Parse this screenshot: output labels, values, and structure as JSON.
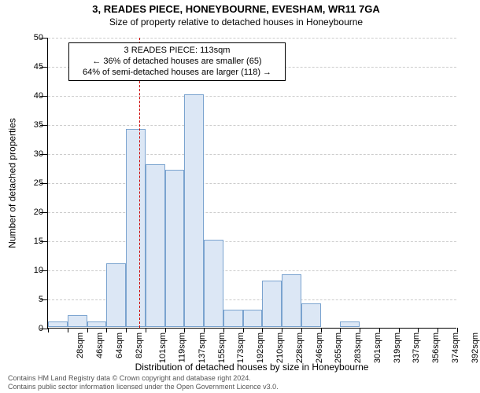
{
  "title": "3, READES PIECE, HONEYBOURNE, EVESHAM, WR11 7GA",
  "subtitle": "Size of property relative to detached houses in Honeybourne",
  "ylabel": "Number of detached properties",
  "xlabel": "Distribution of detached houses by size in Honeybourne",
  "chart": {
    "type": "histogram",
    "ylim": [
      0,
      50
    ],
    "ytick_step": 5,
    "bar_fill": "#dce7f5",
    "bar_stroke": "#7aa3cf",
    "bar_stroke_width": 1,
    "background": "#ffffff",
    "grid_color": "#cccccc",
    "xtick_labels": [
      "28sqm",
      "46sqm",
      "64sqm",
      "82sqm",
      "101sqm",
      "119sqm",
      "137sqm",
      "155sqm",
      "173sqm",
      "192sqm",
      "210sqm",
      "228sqm",
      "246sqm",
      "265sqm",
      "283sqm",
      "301sqm",
      "319sqm",
      "337sqm",
      "356sqm",
      "374sqm",
      "392sqm"
    ],
    "values": [
      1,
      2,
      1,
      11,
      34,
      28,
      27,
      40,
      15,
      3,
      3,
      8,
      9,
      4,
      0,
      1,
      0,
      0,
      0,
      0,
      0
    ],
    "marker_line_color": "#cc0000",
    "marker_bin_index": 4,
    "marker_fraction_in_bin": 0.67,
    "annotation_lines": [
      "3 READES PIECE: 113sqm",
      "← 36% of detached houses are smaller (65)",
      "64% of semi-detached houses are larger (118) →"
    ]
  },
  "footer_line1": "Contains HM Land Registry data © Crown copyright and database right 2024.",
  "footer_line2": "Contains public sector information licensed under the Open Government Licence v3.0."
}
